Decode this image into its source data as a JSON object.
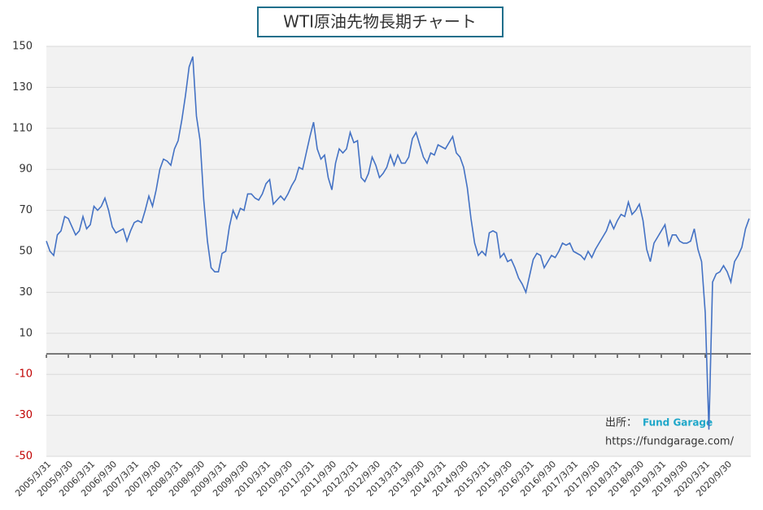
{
  "chart_data": {
    "type": "line",
    "title": "WTI原油先物長期チャート",
    "categories": [
      "2005/3/31",
      null,
      null,
      null,
      null,
      null,
      "2005/9/30",
      null,
      null,
      null,
      null,
      null,
      "2006/3/31",
      null,
      null,
      null,
      null,
      null,
      "2006/9/30",
      null,
      null,
      null,
      null,
      null,
      "2007/3/31",
      null,
      null,
      null,
      null,
      null,
      "2007/9/30",
      null,
      null,
      null,
      null,
      null,
      "2008/3/31",
      null,
      null,
      null,
      null,
      null,
      "2008/9/30",
      null,
      null,
      null,
      null,
      null,
      "2009/3/31",
      null,
      null,
      null,
      null,
      null,
      "2009/9/30",
      null,
      null,
      null,
      null,
      null,
      "2010/3/31",
      null,
      null,
      null,
      null,
      null,
      "2010/9/30",
      null,
      null,
      null,
      null,
      null,
      "2011/3/31",
      null,
      null,
      null,
      null,
      null,
      "2011/9/30",
      null,
      null,
      null,
      null,
      null,
      "2012/3/31",
      null,
      null,
      null,
      null,
      null,
      "2012/9/30",
      null,
      null,
      null,
      null,
      null,
      "2013/3/31",
      null,
      null,
      null,
      null,
      null,
      "2013/9/30",
      null,
      null,
      null,
      null,
      null,
      "2014/3/31",
      null,
      null,
      null,
      null,
      null,
      "2014/9/30",
      null,
      null,
      null,
      null,
      null,
      "2015/3/31",
      null,
      null,
      null,
      null,
      null,
      "2015/9/30",
      null,
      null,
      null,
      null,
      null,
      "2016/3/31",
      null,
      null,
      null,
      null,
      null,
      "2016/9/30",
      null,
      null,
      null,
      null,
      null,
      "2017/3/31",
      null,
      null,
      null,
      null,
      null,
      "2017/9/30",
      null,
      null,
      null,
      null,
      null,
      "2018/3/31",
      null,
      null,
      null,
      null,
      null,
      "2018/9/30",
      null,
      null,
      null,
      null,
      null,
      "2019/3/31",
      null,
      null,
      null,
      null,
      null,
      "2019/9/30",
      null,
      null,
      null,
      null,
      null,
      "2020/3/31",
      null,
      null,
      null,
      null,
      null,
      "2020/9/30",
      null,
      null,
      null,
      null,
      null,
      null
    ],
    "series": [
      {
        "name": "WTI",
        "color": "#4472c4",
        "values": [
          55,
          50,
          48,
          58,
          60,
          67,
          66,
          62,
          58,
          60,
          67,
          61,
          63,
          72,
          70,
          72,
          76,
          70,
          62,
          59,
          60,
          61,
          55,
          60,
          64,
          65,
          64,
          70,
          77,
          72,
          80,
          90,
          95,
          94,
          92,
          100,
          104,
          114,
          126,
          140,
          145,
          116,
          104,
          75,
          55,
          42,
          40,
          40,
          49,
          50,
          62,
          70,
          66,
          71,
          70,
          78,
          78,
          76,
          75,
          78,
          83,
          85,
          73,
          75,
          77,
          75,
          78,
          82,
          85,
          91,
          90,
          98,
          106,
          113,
          100,
          95,
          97,
          86,
          80,
          93,
          100,
          98,
          100,
          108,
          103,
          104,
          86,
          84,
          88,
          96,
          92,
          86,
          88,
          91,
          97,
          92,
          97,
          93,
          93,
          96,
          105,
          108,
          102,
          96,
          93,
          98,
          97,
          102,
          101,
          100,
          103,
          106,
          98,
          96,
          91,
          81,
          66,
          54,
          48,
          50,
          48,
          59,
          60,
          59,
          47,
          49,
          45,
          46,
          42,
          37,
          34,
          30,
          38,
          46,
          49,
          48,
          42,
          45,
          48,
          47,
          50,
          54,
          53,
          54,
          50,
          49,
          48,
          46,
          50,
          47,
          51,
          54,
          57,
          60,
          65,
          61,
          65,
          68,
          67,
          74,
          68,
          70,
          73,
          65,
          51,
          45,
          54,
          57,
          60,
          63,
          53,
          58,
          58,
          55,
          54,
          54,
          55,
          61,
          51,
          45,
          20,
          -37,
          35,
          39,
          40,
          43,
          40,
          35,
          45,
          48,
          52,
          61,
          66
        ]
      }
    ],
    "ylim": [
      -50,
      150
    ],
    "yticks": [
      -50,
      -30,
      -10,
      10,
      30,
      50,
      70,
      90,
      110,
      130,
      150
    ],
    "grid": true,
    "negative_tick_color": "#c00000",
    "zero_line": true,
    "annotations": {
      "source_label": "出所：",
      "source_name": "Fund Garage",
      "url": "https://fundgarage.com/"
    }
  }
}
